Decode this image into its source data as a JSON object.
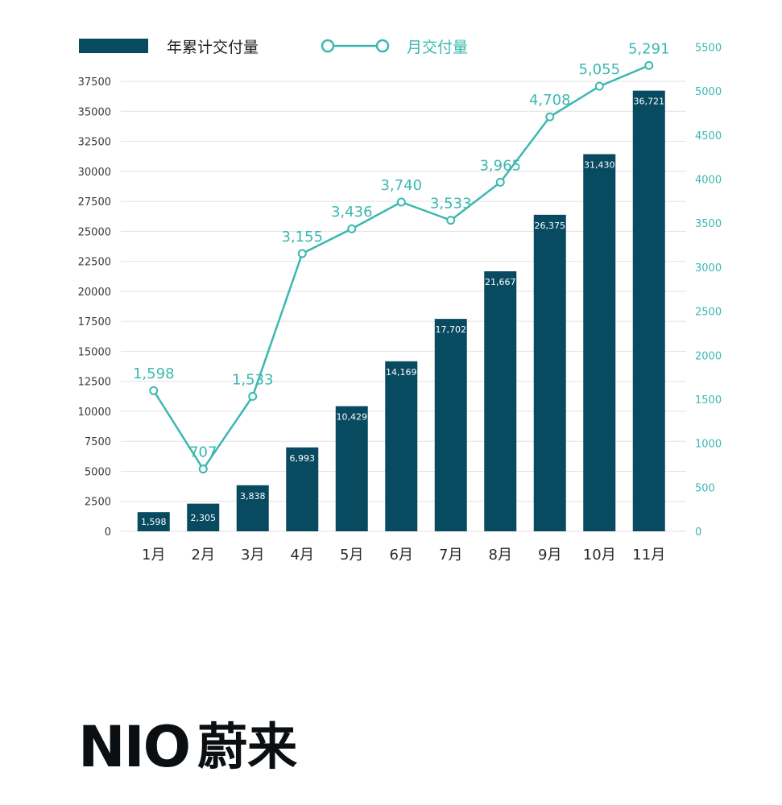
{
  "chart_data": {
    "type": "bar",
    "categories": [
      "1月",
      "2月",
      "3月",
      "4月",
      "5月",
      "6月",
      "7月",
      "8月",
      "9月",
      "10月",
      "11月"
    ],
    "series": [
      {
        "name": "年累计交付量",
        "type": "bar",
        "axis": "left",
        "values": [
          1598,
          2305,
          3838,
          6993,
          10429,
          14169,
          17702,
          21667,
          26375,
          31430,
          36721
        ],
        "labels": [
          "1,598",
          "2,305",
          "3,838",
          "6,993",
          "10,429",
          "14,169",
          "17,702",
          "21,667",
          "26,375",
          "31,430",
          "36,721"
        ]
      },
      {
        "name": "月交付量",
        "type": "line",
        "axis": "right",
        "values": [
          1598,
          707,
          1533,
          3155,
          3436,
          3740,
          3533,
          3965,
          4708,
          5055,
          5291
        ],
        "labels": [
          "1,598",
          "707",
          "1,533",
          "3,155",
          "3,436",
          "3,740",
          "3,533",
          "3,965",
          "4,708",
          "5,055",
          "5,291"
        ]
      }
    ],
    "y_left": {
      "range": [
        0,
        37500
      ],
      "ticks": [
        "0",
        "2500",
        "5000",
        "7500",
        "10000",
        "12500",
        "15000",
        "17500",
        "20000",
        "22500",
        "25000",
        "27500",
        "30000",
        "32500",
        "35000",
        "37500"
      ]
    },
    "y_right": {
      "range": [
        0,
        5500
      ],
      "ticks": [
        "0",
        "500",
        "1000",
        "1500",
        "2000",
        "2500",
        "3000",
        "3500",
        "4000",
        "4500",
        "5000",
        "5500"
      ]
    },
    "legend_position": "top-left",
    "grid": true,
    "colors": {
      "bar": "#084a60",
      "line": "#3bb8b0",
      "left_tick": "#3a3a3a",
      "right_tick": "#3bb8b0",
      "grid": "#e2e2e2"
    }
  },
  "logo": {
    "latin": "NIO",
    "cjk": "蔚来"
  }
}
